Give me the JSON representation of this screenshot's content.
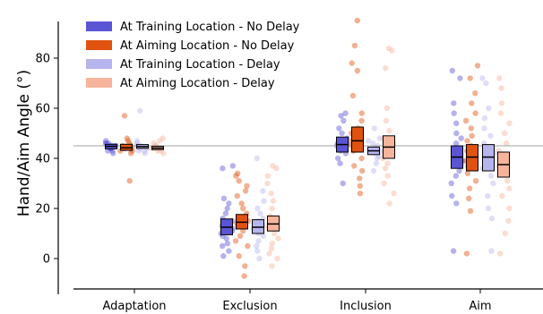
{
  "chart_data": {
    "type": "strip-box",
    "title": "",
    "xlabel": "",
    "ylabel": "Hand/Aim Angle (°)",
    "categories": [
      "Adaptation",
      "Exclusion",
      "Inclusion",
      "Aim"
    ],
    "yticks": [
      0,
      20,
      40,
      60,
      80
    ],
    "ylim": [
      -12,
      98
    ],
    "reference_line": 45,
    "grid": false,
    "legend_position": "top-left",
    "series": [
      {
        "name": "At Training Location - No Delay",
        "color": "#5b55d6",
        "box": [
          {
            "q1": 43.8,
            "median": 44.8,
            "q3": 45.6
          },
          {
            "q1": 9.5,
            "median": 12.5,
            "q3": 15.8
          },
          {
            "q1": 42.5,
            "median": 45.5,
            "q3": 48.5
          },
          {
            "q1": 36.0,
            "median": 40.5,
            "q3": 45.0
          }
        ],
        "points": [
          [
            44,
            45,
            46,
            43,
            45,
            44,
            46,
            45,
            43,
            44,
            46,
            45,
            42,
            47,
            44
          ],
          [
            1,
            3,
            5,
            6,
            8,
            9,
            10,
            11,
            12,
            13,
            14,
            15,
            16,
            18,
            20,
            22,
            24,
            36,
            37,
            12,
            14
          ],
          [
            30,
            38,
            40,
            42,
            43,
            44,
            45,
            46,
            47,
            48,
            50,
            52,
            55,
            57,
            58,
            44,
            46
          ],
          [
            3,
            22,
            25,
            30,
            33,
            35,
            37,
            39,
            40,
            42,
            44,
            46,
            48,
            50,
            54,
            58,
            62,
            72,
            75,
            40
          ]
        ]
      },
      {
        "name": "At Aiming Location - No Delay",
        "color": "#e0520f",
        "box": [
          {
            "q1": 43.2,
            "median": 44.2,
            "q3": 45.6
          },
          {
            "q1": 11.8,
            "median": 14.5,
            "q3": 17.6
          },
          {
            "q1": 42.5,
            "median": 47.0,
            "q3": 52.5
          },
          {
            "q1": 35.0,
            "median": 40.5,
            "q3": 45.5
          }
        ],
        "points": [
          [
            31,
            42,
            43,
            44,
            45,
            46,
            47,
            48,
            43,
            44,
            57,
            45,
            44
          ],
          [
            -7,
            -3,
            1,
            5,
            7,
            9,
            11,
            13,
            14,
            15,
            16,
            18,
            20,
            22,
            25,
            27,
            29,
            31,
            33,
            34
          ],
          [
            26,
            29,
            32,
            35,
            37,
            40,
            43,
            45,
            47,
            50,
            52,
            55,
            58,
            65,
            75,
            78,
            85,
            95
          ],
          [
            2,
            19,
            24,
            28,
            31,
            34,
            37,
            39,
            41,
            43,
            45,
            47,
            49,
            52,
            55,
            58,
            62,
            66,
            72,
            77
          ]
        ]
      },
      {
        "name": "At Training Location - Delay",
        "color": "#b7b5ee",
        "box": [
          {
            "q1": 44.0,
            "median": 44.7,
            "q3": 45.5
          },
          {
            "q1": 10.0,
            "median": 12.5,
            "q3": 15.5
          },
          {
            "q1": 41.5,
            "median": 43.0,
            "q3": 44.5
          },
          {
            "q1": 35.0,
            "median": 40.5,
            "q3": 45.5
          }
        ],
        "points": [
          [
            42,
            43,
            44,
            45,
            46,
            44,
            45,
            47,
            43,
            59,
            45
          ],
          [
            0,
            3,
            5,
            7,
            9,
            10,
            11,
            12,
            13,
            14,
            15,
            16,
            18,
            20,
            23,
            27,
            40
          ],
          [
            35,
            38,
            40,
            41,
            42,
            43,
            44,
            45,
            46,
            47,
            48,
            52,
            44,
            43
          ],
          [
            3,
            16,
            20,
            25,
            30,
            33,
            36,
            38,
            40,
            42,
            44,
            46,
            49,
            52,
            56,
            60,
            70,
            72
          ]
        ]
      },
      {
        "name": "At Aiming Location - Delay",
        "color": "#f7b49c",
        "box": [
          {
            "q1": 43.5,
            "median": 44.1,
            "q3": 44.8
          },
          {
            "q1": 11.0,
            "median": 13.8,
            "q3": 17.0
          },
          {
            "q1": 40.0,
            "median": 44.5,
            "q3": 49.0
          },
          {
            "q1": 32.5,
            "median": 37.5,
            "q3": 42.5
          }
        ],
        "points": [
          [
            42,
            43,
            44,
            45,
            46,
            47,
            44,
            43,
            45,
            48,
            44
          ],
          [
            -3,
            0,
            2,
            4,
            6,
            8,
            10,
            12,
            13,
            15,
            17,
            20,
            23,
            26,
            30,
            33,
            36,
            37
          ],
          [
            22,
            26,
            30,
            33,
            36,
            38,
            40,
            42,
            44,
            46,
            48,
            51,
            55,
            60,
            76,
            83,
            84
          ],
          [
            2,
            10,
            15,
            20,
            25,
            28,
            31,
            34,
            37,
            40,
            43,
            46,
            50,
            54,
            58,
            62,
            68,
            72
          ]
        ]
      }
    ]
  }
}
